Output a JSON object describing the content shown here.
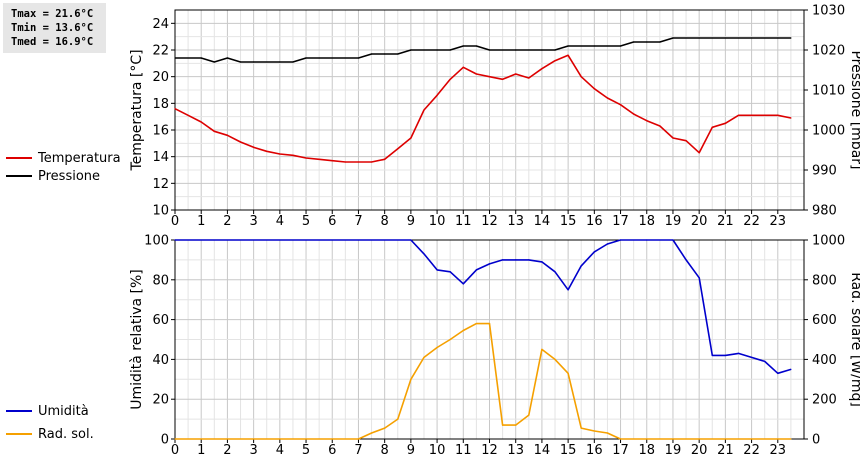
{
  "stats": {
    "tmax": "Tmax = 21.6°C",
    "tmin": "Tmin = 13.6°C",
    "tmed": "Tmed = 16.9°C"
  },
  "chart_data": [
    {
      "type": "line",
      "title": "",
      "xlabel": "",
      "xlim": [
        0,
        24
      ],
      "x_ticks": [
        0,
        1,
        2,
        3,
        4,
        5,
        6,
        7,
        8,
        9,
        10,
        11,
        12,
        13,
        14,
        15,
        16,
        17,
        18,
        19,
        20,
        21,
        22,
        23
      ],
      "left_axis": {
        "label": "Temperatura [°C]",
        "range": [
          10,
          25
        ],
        "ticks": [
          10,
          12,
          14,
          16,
          18,
          20,
          22,
          24
        ]
      },
      "right_axis": {
        "label": "Pressione [mbar]",
        "range": [
          980,
          1030
        ],
        "ticks": [
          980,
          990,
          1000,
          1010,
          1020,
          1030
        ]
      },
      "grid": true,
      "legend_position": "left",
      "series": [
        {
          "name": "Temperatura",
          "axis": "left",
          "color": "#dd0000",
          "x": [
            0,
            0.5,
            1,
            1.5,
            2,
            2.5,
            3,
            3.5,
            4,
            4.5,
            5,
            5.5,
            6,
            6.5,
            7,
            7.5,
            8,
            8.5,
            9,
            9.5,
            10,
            10.5,
            11,
            11.5,
            12,
            12.5,
            13,
            13.5,
            14,
            14.5,
            15,
            15.5,
            16,
            16.5,
            17,
            17.5,
            18,
            18.5,
            19,
            19.5,
            20,
            20.5,
            21,
            21.5,
            22,
            22.5,
            23,
            23.5
          ],
          "values": [
            17.6,
            17.1,
            16.6,
            15.9,
            15.6,
            15.1,
            14.7,
            14.4,
            14.2,
            14.1,
            13.9,
            13.8,
            13.7,
            13.6,
            13.6,
            13.6,
            13.8,
            14.6,
            15.4,
            17.5,
            18.6,
            19.8,
            20.7,
            20.2,
            20.0,
            19.8,
            20.2,
            19.9,
            20.6,
            21.2,
            21.6,
            20.0,
            19.1,
            18.4,
            17.9,
            17.2,
            16.7,
            16.3,
            15.4,
            15.2,
            14.3,
            16.2,
            16.5,
            17.1,
            17.1,
            17.1,
            17.1,
            16.9
          ]
        },
        {
          "name": "Pressione",
          "axis": "right",
          "color": "#000000",
          "x": [
            0,
            1,
            1.5,
            2,
            2.5,
            3,
            4,
            4.5,
            5,
            5.5,
            7,
            7.5,
            8,
            8.5,
            9,
            10,
            10.5,
            11,
            11.5,
            12,
            13,
            14,
            14.5,
            15,
            16,
            17,
            17.5,
            18,
            18.5,
            19,
            23.5
          ],
          "values": [
            1018,
            1018,
            1017,
            1018,
            1017,
            1017,
            1017,
            1017,
            1018,
            1018,
            1018,
            1019,
            1019,
            1019,
            1020,
            1020,
            1020,
            1021,
            1021,
            1020,
            1020,
            1020,
            1020,
            1021,
            1021,
            1021,
            1022,
            1022,
            1022,
            1023,
            1023
          ]
        }
      ]
    },
    {
      "type": "line",
      "title": "",
      "xlabel": "",
      "xlim": [
        0,
        24
      ],
      "x_ticks": [
        0,
        1,
        2,
        3,
        4,
        5,
        6,
        7,
        8,
        9,
        10,
        11,
        12,
        13,
        14,
        15,
        16,
        17,
        18,
        19,
        20,
        21,
        22,
        23
      ],
      "left_axis": {
        "label": "Umidità relativa [%]",
        "range": [
          0,
          100
        ],
        "ticks": [
          0,
          20,
          40,
          60,
          80,
          100
        ]
      },
      "right_axis": {
        "label": "Rad. solare [W/mq]",
        "range": [
          0,
          1000
        ],
        "ticks": [
          0,
          200,
          400,
          600,
          800,
          1000
        ]
      },
      "grid": true,
      "legend_position": "left",
      "series": [
        {
          "name": "Umidità",
          "axis": "left",
          "color": "#0000cc",
          "x": [
            0,
            9,
            9.5,
            10,
            10.5,
            11,
            11.5,
            12,
            12.5,
            13,
            13.5,
            14,
            14.5,
            15,
            15.5,
            16,
            16.5,
            17,
            18,
            19,
            19.5,
            20,
            20.5,
            21,
            21.5,
            22,
            22.5,
            23,
            23.5
          ],
          "values": [
            100,
            100,
            93,
            85,
            84,
            78,
            85,
            88,
            90,
            90,
            90,
            89,
            84,
            75,
            87,
            94,
            98,
            100,
            100,
            100,
            90,
            81,
            42,
            42,
            43,
            41,
            39,
            33,
            35
          ]
        },
        {
          "name": "Rad. sol.",
          "axis": "right",
          "color": "#f5a000",
          "x": [
            0,
            7,
            7.5,
            8,
            8.5,
            9,
            9.5,
            10,
            10.5,
            11,
            11.5,
            12,
            12.5,
            13,
            13.5,
            14,
            14.5,
            15,
            15.5,
            16,
            16.5,
            17,
            23.5
          ],
          "values": [
            0,
            0,
            30,
            55,
            100,
            300,
            410,
            460,
            500,
            545,
            580,
            580,
            70,
            70,
            120,
            450,
            400,
            330,
            55,
            40,
            30,
            0,
            0
          ]
        }
      ]
    }
  ]
}
